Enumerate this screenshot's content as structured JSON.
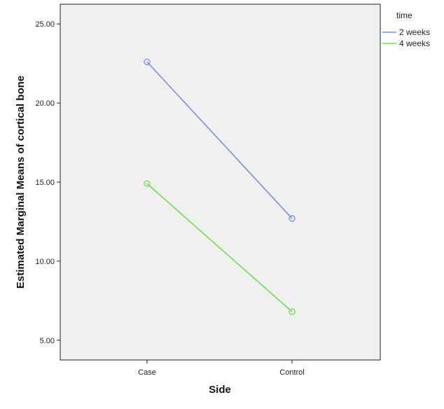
{
  "chart_data": {
    "type": "line",
    "title": "",
    "xlabel": "Side",
    "ylabel": "Estimated Marginal Means of cortical bone",
    "categories": [
      "Case",
      "Control"
    ],
    "ylim": [
      3.75,
      26.25
    ],
    "yticks": [
      5,
      10,
      15,
      20,
      25
    ],
    "ytick_labels": [
      "5.00",
      "10.00",
      "15.00",
      "20.00",
      "25.00"
    ],
    "legend": {
      "title": "time",
      "placement": "right"
    },
    "grid": false,
    "series": [
      {
        "name": "2 weeks",
        "values": [
          22.6,
          12.7
        ],
        "color": "#7e8ee6"
      },
      {
        "name": "4 weeks",
        "values": [
          14.9,
          6.8
        ],
        "color": "#6ee04c"
      }
    ]
  },
  "colors": {
    "plot_background": "#f0f0f0",
    "axis": "#222222"
  }
}
